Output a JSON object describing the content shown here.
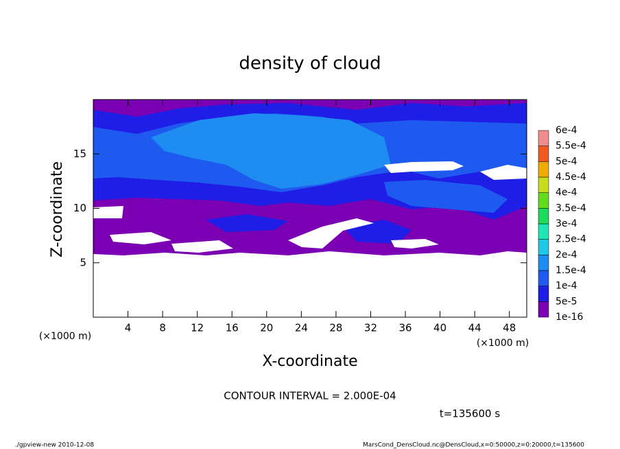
{
  "chart_data": {
    "type": "contour",
    "title": "density of cloud",
    "x_label": "X-coordinate",
    "y_label": "Z-coordinate",
    "x_unit": "(×1000 m)",
    "y_unit": "(×1000 m)",
    "xlim": [
      0,
      50
    ],
    "xticks": [
      4,
      8,
      12,
      16,
      20,
      24,
      28,
      32,
      36,
      40,
      44,
      48
    ],
    "ylim": [
      0,
      20
    ],
    "yticks": [
      5,
      10,
      15
    ],
    "colorbar": {
      "levels": [
        {
          "value": 1e-16,
          "label": "1e-16"
        },
        {
          "value": 5e-05,
          "label": "5e-5"
        },
        {
          "value": 0.0001,
          "label": "1e-4"
        },
        {
          "value": 0.00015,
          "label": "1.5e-4"
        },
        {
          "value": 0.0002,
          "label": "2e-4"
        },
        {
          "value": 0.00025,
          "label": "2.5e-4"
        },
        {
          "value": 0.0003,
          "label": "3e-4"
        },
        {
          "value": 0.00035,
          "label": "3.5e-4"
        },
        {
          "value": 0.0004,
          "label": "4e-4"
        },
        {
          "value": 0.00045,
          "label": "4.5e-4"
        },
        {
          "value": 0.0005,
          "label": "5e-4"
        },
        {
          "value": 0.00055,
          "label": "5.5e-4"
        },
        {
          "value": 0.0006,
          "label": "6e-4"
        }
      ],
      "colors": [
        "#7b00b4",
        "#1e1ee6",
        "#1e5af0",
        "#1e8cf0",
        "#1ec8e6",
        "#1ee6b4",
        "#1edc5a",
        "#64dc1e",
        "#c8dc1e",
        "#f0aa00",
        "#f05a1e",
        "#f08c8c"
      ]
    },
    "contour_interval": "CONTOUR INTERVAL = 2.000E-04",
    "time_label": "t=135600 s",
    "footer_left": "./gpview-new  2010-12-08",
    "footer_right": "MarsCond_DensCloud.nc@DensCloud,x=0:50000,z=0:20000,t=135600"
  }
}
